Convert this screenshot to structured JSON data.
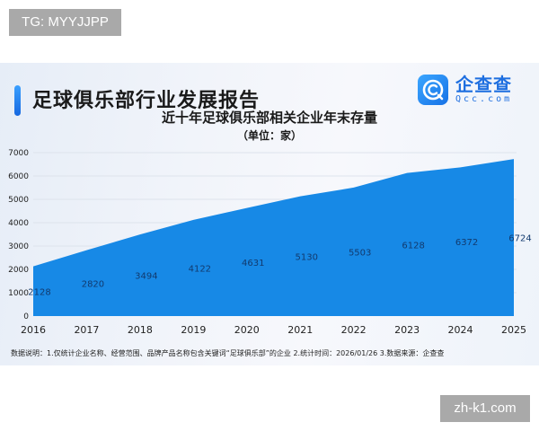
{
  "watermarks": {
    "top_left": "TG: MYYJJPP",
    "bottom_right": "zh-k1.com"
  },
  "header": {
    "report_title": "足球俱乐部行业发展报告",
    "logo_cn": "企查查",
    "logo_en": "Qcc.com"
  },
  "colors": {
    "area_fill": "#1789e6",
    "accent": "#1a7ae8",
    "grid": "#dde3ec"
  },
  "footnote": "数据说明：1.仅统计企业名称、经营范围、品牌产品名称包含关键词“足球俱乐部”的企业  2.统计时间：2026/01/26   3.数据来源：企查查",
  "chart_data": {
    "type": "area",
    "title": "近十年足球俱乐部相关企业年末存量",
    "subtitle": "（单位：家）",
    "xlabel": "",
    "ylabel": "",
    "categories": [
      "2016",
      "2017",
      "2018",
      "2019",
      "2020",
      "2021",
      "2022",
      "2023",
      "2024",
      "2025"
    ],
    "values": [
      2128,
      2820,
      3494,
      4122,
      4631,
      5130,
      5503,
      6128,
      6372,
      6724
    ],
    "data_labels": [
      "2128",
      "2820",
      "3494",
      "4122",
      "4631",
      "5130",
      "5503",
      "6128",
      "6372",
      "6724"
    ],
    "yticks": [
      "0",
      "1000",
      "2000",
      "3000",
      "4000",
      "5000",
      "6000",
      "7000"
    ],
    "ylim": [
      0,
      7000
    ],
    "grid": true,
    "legend": null
  }
}
